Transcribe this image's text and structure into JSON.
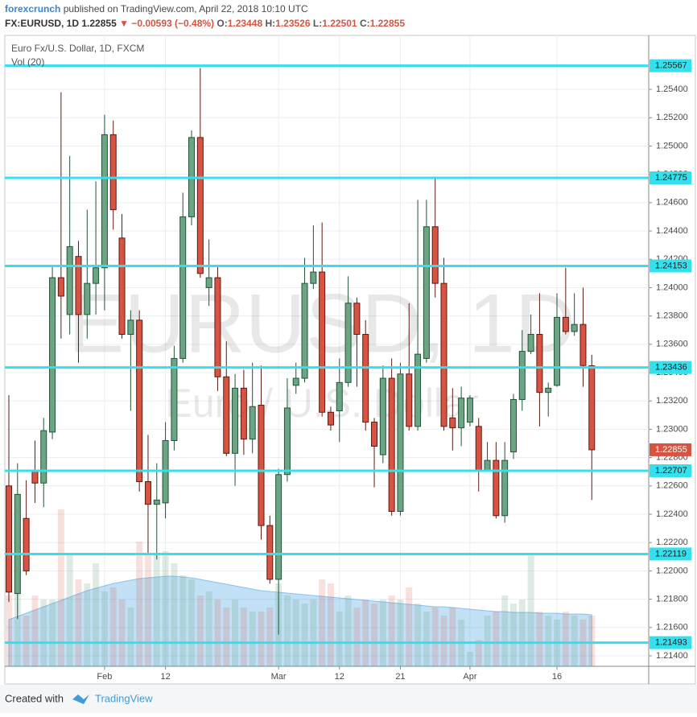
{
  "header": {
    "publisher": "forexcrunch",
    "published": "published on TradingView.com, April 22, 2018 10:10 UTC",
    "symbol": "FX:EURUSD, 1D",
    "price": "1.22855",
    "change": "▼ −0.00593 (−0.48%)",
    "ohlc": [
      {
        "label": "O:",
        "value": "1.23448"
      },
      {
        "label": "H:",
        "value": "1.23526"
      },
      {
        "label": "L:",
        "value": "1.22501"
      },
      {
        "label": "C:",
        "value": "1.22855"
      }
    ]
  },
  "chart_data": {
    "type": "candlestick",
    "title": "Euro Fx/U.S. Dollar, 1D, FXCM",
    "volume_label": "Vol (20)",
    "watermark": "EURUSD, 1D",
    "watermark_subtitle": "Euro / U.S. Dollar",
    "categories": [
      null,
      null,
      null,
      null,
      null,
      null,
      null,
      null,
      null,
      null,
      null,
      "Feb",
      null,
      null,
      null,
      null,
      null,
      null,
      "12",
      null,
      null,
      null,
      null,
      null,
      null,
      null,
      null,
      null,
      null,
      null,
      null,
      "Mar",
      null,
      null,
      null,
      null,
      null,
      null,
      "12",
      null,
      null,
      null,
      null,
      null,
      null,
      "21",
      null,
      null,
      null,
      null,
      null,
      null,
      null,
      "Apr",
      null,
      null,
      null,
      null,
      null,
      null,
      null,
      null,
      null,
      "16",
      null,
      null,
      null,
      null
    ],
    "open": [
      1.226,
      1.2184,
      1.2237,
      1.2271,
      1.2262,
      1.2298,
      1.2407,
      1.2381,
      1.2422,
      1.2381,
      1.2403,
      1.2414,
      1.2508,
      1.2435,
      1.2367,
      1.2377,
      1.2263,
      1.2247,
      1.2248,
      1.2292,
      1.235,
      1.245,
      1.2506,
      1.24,
      1.2407,
      1.2337,
      1.2283,
      1.2329,
      1.2293,
      1.2317,
      1.2232,
      1.2194,
      1.2268,
      1.2331,
      1.2336,
      1.2403,
      1.2411,
      1.2312,
      1.2313,
      1.2333,
      1.2389,
      1.2367,
      1.2305,
      1.2282,
      1.2336,
      1.2242,
      1.2339,
      1.2302,
      1.235,
      1.2443,
      1.2403,
      1.2308,
      1.2301,
      1.2305,
      1.2302,
      1.2271,
      1.2278,
      1.2239,
      1.2284,
      1.2321,
      1.2355,
      1.2367,
      1.2326,
      1.2331,
      1.2379,
      1.2369,
      1.2374,
      1.23448
    ],
    "high": [
      1.2324,
      1.2276,
      1.2264,
      1.2292,
      1.2308,
      1.2416,
      1.2538,
      1.2493,
      1.2433,
      1.2455,
      1.2475,
      1.2522,
      1.2518,
      1.2452,
      1.2384,
      1.2384,
      1.2296,
      1.2276,
      1.2305,
      1.2359,
      1.2467,
      1.2511,
      1.2555,
      1.2434,
      1.2416,
      1.2362,
      1.2339,
      1.2342,
      1.2347,
      1.2345,
      1.2239,
      1.2272,
      1.2336,
      1.2347,
      1.2421,
      1.2444,
      1.2446,
      1.2316,
      1.235,
      1.2408,
      1.2393,
      1.2377,
      1.2308,
      1.2345,
      1.235,
      1.2347,
      1.2389,
      1.2462,
      1.2462,
      1.2477,
      1.2421,
      1.2329,
      1.233,
      1.2324,
      1.2308,
      1.2291,
      1.2291,
      1.2291,
      1.2325,
      1.237,
      1.2381,
      1.2396,
      1.2333,
      1.2396,
      1.2414,
      1.2396,
      1.24,
      1.23526
    ],
    "low": [
      1.2178,
      1.2166,
      1.2197,
      1.2248,
      1.2245,
      1.2293,
      1.2364,
      1.2367,
      1.2347,
      1.2364,
      1.2381,
      1.2384,
      1.2441,
      1.2364,
      1.2313,
      1.2256,
      1.2212,
      1.2208,
      1.2237,
      1.2285,
      1.2347,
      1.2444,
      1.2407,
      1.2387,
      1.2327,
      1.2281,
      1.226,
      1.2282,
      1.2283,
      1.2222,
      1.2191,
      1.2155,
      1.2263,
      1.2325,
      1.2333,
      1.2399,
      1.2309,
      1.2299,
      1.2291,
      1.233,
      1.233,
      1.2299,
      1.2259,
      1.2276,
      1.2239,
      1.2239,
      1.2299,
      1.2299,
      1.2347,
      1.2393,
      1.2299,
      1.2285,
      1.2288,
      1.2302,
      1.2256,
      1.227,
      1.2237,
      1.2234,
      1.2279,
      1.2313,
      1.2353,
      1.2302,
      1.2309,
      1.233,
      1.2367,
      1.2366,
      1.233,
      1.22501
    ],
    "close": [
      1.2185,
      1.2254,
      1.22,
      1.2262,
      1.2299,
      1.2407,
      1.2394,
      1.2429,
      1.2381,
      1.2403,
      1.2414,
      1.2508,
      1.2455,
      1.2367,
      1.2377,
      1.2263,
      1.2247,
      1.225,
      1.2292,
      1.235,
      1.245,
      1.2506,
      1.241,
      1.2407,
      1.2337,
      1.2283,
      1.2329,
      1.2293,
      1.2316,
      1.2232,
      1.2194,
      1.2268,
      1.2315,
      1.2336,
      1.2403,
      1.2411,
      1.2312,
      1.2303,
      1.2333,
      1.2389,
      1.2367,
      1.2305,
      1.2288,
      1.2336,
      1.2242,
      1.2339,
      1.2302,
      1.2353,
      1.2443,
      1.2403,
      1.2302,
      1.2301,
      1.2322,
      1.2322,
      1.2271,
      1.2278,
      1.2239,
      1.2278,
      1.2321,
      1.2355,
      1.2367,
      1.2326,
      1.2329,
      1.2379,
      1.2369,
      1.2374,
      1.2345,
      1.22855
    ],
    "volume": [
      88,
      93,
      63,
      88,
      83,
      83,
      195,
      138,
      108,
      103,
      128,
      93,
      98,
      83,
      73,
      155,
      138,
      138,
      143,
      128,
      113,
      108,
      88,
      93,
      83,
      73,
      83,
      73,
      68,
      68,
      73,
      103,
      88,
      83,
      78,
      83,
      108,
      103,
      68,
      88,
      73,
      83,
      78,
      83,
      88,
      83,
      98,
      78,
      68,
      73,
      63,
      73,
      58,
      18,
      33,
      63,
      68,
      88,
      78,
      83,
      138,
      68,
      63,
      58,
      68,
      63,
      58,
      63
    ],
    "volume_ma": [
      58,
      62,
      66,
      70,
      74,
      78,
      82,
      86,
      90,
      94,
      97,
      100,
      103,
      105,
      107,
      109,
      110,
      111,
      112,
      112,
      111,
      110,
      108,
      106,
      104,
      102,
      100,
      98,
      96,
      94,
      93,
      92,
      91,
      90,
      89,
      88,
      87,
      86,
      85,
      84,
      83,
      82,
      81,
      80,
      79,
      78,
      77,
      76,
      75,
      74,
      74,
      73,
      72,
      71,
      70,
      69,
      68,
      68,
      67,
      67,
      67,
      66,
      66,
      66,
      65,
      65,
      65,
      64
    ],
    "up_color": "#6ba583",
    "down_color": "#d75442",
    "up_border": "#225437",
    "down_border": "#5b1a13",
    "hlines": [
      1.25567,
      1.24775,
      1.24153,
      1.23436,
      1.22707,
      1.22119,
      1.21493
    ],
    "hline_color": "#33e0ee",
    "ylim": [
      1.21326,
      1.25781
    ],
    "yticks": [
      {
        "value": 1.214,
        "label": "1.21400"
      },
      {
        "value": 1.216,
        "label": "1.21600"
      },
      {
        "value": 1.218,
        "label": "1.21800"
      },
      {
        "value": 1.22,
        "label": "1.22000"
      },
      {
        "value": 1.222,
        "label": "1.22200"
      },
      {
        "value": 1.224,
        "label": "1.22400"
      },
      {
        "value": 1.226,
        "label": "1.22600"
      },
      {
        "value": 1.228,
        "label": "1.22800"
      },
      {
        "value": 1.23,
        "label": "1.23000"
      },
      {
        "value": 1.232,
        "label": "1.23200"
      },
      {
        "value": 1.234,
        "label": "1.23400"
      },
      {
        "value": 1.236,
        "label": "1.23600"
      },
      {
        "value": 1.238,
        "label": "1.23800"
      },
      {
        "value": 1.24,
        "label": "1.24000"
      },
      {
        "value": 1.242,
        "label": "1.24200"
      },
      {
        "value": 1.244,
        "label": "1.24400"
      },
      {
        "value": 1.246,
        "label": "1.24600"
      },
      {
        "value": 1.248,
        "label": "1.24800"
      },
      {
        "value": 1.25,
        "label": "1.25000"
      },
      {
        "value": 1.252,
        "label": "1.25200"
      },
      {
        "value": 1.254,
        "label": "1.25400"
      }
    ],
    "grid": true
  },
  "footer": {
    "created": "Created with",
    "brand": "TradingView"
  }
}
